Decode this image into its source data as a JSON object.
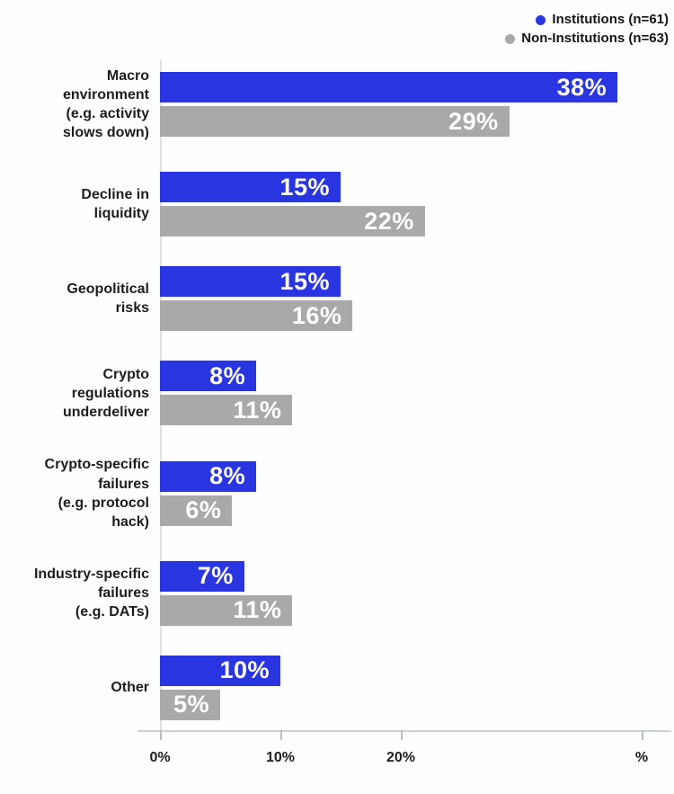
{
  "legend": {
    "items": [
      {
        "label": "Institutions (n=61)",
        "color": "#2a35e2"
      },
      {
        "label": "Non-Institutions (n=63)",
        "color": "#a9a9a9"
      }
    ]
  },
  "chart_data": {
    "type": "bar",
    "orientation": "horizontal",
    "title": "",
    "categories": [
      "Macro\nenvironment\n(e.g. activity\nslows down)",
      "Decline in\nliquidity",
      "Geopolitical\nrisks",
      "Crypto\nregulations\nunderdeliver",
      "Crypto-specific\nfailures\n(e.g. protocol\nhack)",
      "Industry-specific\nfailures\n(e.g. DATs)",
      "Other"
    ],
    "series": [
      {
        "name": "Institutions (n=61)",
        "color": "#2a35e2",
        "values": [
          38,
          15,
          15,
          8,
          8,
          7,
          10
        ]
      },
      {
        "name": "Non-Institutions (n=63)",
        "color": "#a9a9a9",
        "values": [
          29,
          22,
          16,
          11,
          6,
          11,
          5
        ]
      }
    ],
    "value_suffix": "%",
    "xlim": [
      0,
      40
    ],
    "x_ticks": [
      {
        "value": 0,
        "label": "0%"
      },
      {
        "value": 10,
        "label": "10%"
      },
      {
        "value": 20,
        "label": "20%"
      },
      {
        "value": 40,
        "label": "%"
      }
    ],
    "grid": "zero-baseline-only",
    "legend_position": "top-right",
    "value_labels": "inside-bar-right"
  }
}
